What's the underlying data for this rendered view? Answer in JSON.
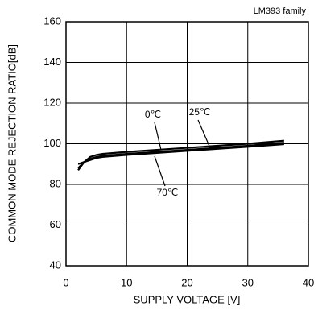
{
  "chart_data": {
    "type": "line",
    "note": "LM393 family",
    "x_label": "SUPPLY VOLTAGE [V]",
    "y_label": "COMMON MODE REJECTION RATIO[dB]",
    "x": [
      2,
      3,
      4,
      5,
      6,
      10,
      15,
      20,
      25,
      30,
      36
    ],
    "series": [
      {
        "name": "0℃",
        "color": "#000000",
        "values": [
          87,
          91,
          93.5,
          94.5,
          95,
          96,
          97,
          98,
          99,
          100,
          101.5
        ]
      },
      {
        "name": "25℃",
        "color": "#000000",
        "values": [
          88,
          91,
          92.5,
          93.5,
          94,
          95,
          96,
          97,
          98,
          99,
          100.5
        ]
      },
      {
        "name": "70℃",
        "color": "#000000",
        "values": [
          90,
          91,
          92,
          93,
          93.5,
          94.5,
          95.5,
          96.5,
          97.5,
          98.5,
          99.8
        ]
      }
    ],
    "xlim": [
      0,
      40
    ],
    "xticks": [
      0,
      10,
      20,
      30,
      40
    ],
    "ylim": [
      40,
      160
    ],
    "yticks": [
      40,
      60,
      80,
      100,
      120,
      140,
      160
    ],
    "grid": true
  }
}
